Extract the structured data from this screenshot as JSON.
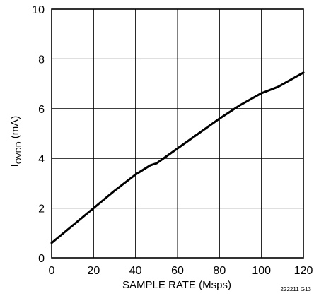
{
  "chart_data": {
    "type": "line",
    "title": "",
    "xlabel": "SAMPLE RATE (Msps)",
    "ylabel": {
      "main": "I",
      "subscript": "OVDD",
      "unit": " (mA)"
    },
    "xlim": [
      0,
      120
    ],
    "ylim": [
      0,
      10
    ],
    "xticks": [
      0,
      20,
      40,
      60,
      80,
      100,
      120
    ],
    "yticks": [
      0,
      2,
      4,
      6,
      8,
      10
    ],
    "grid": true,
    "legend": "none",
    "series": [
      {
        "color": "#000000",
        "x": [
          0,
          10,
          20,
          30,
          40,
          47,
          50,
          60,
          70,
          80,
          90,
          100,
          108,
          120
        ],
        "y": [
          0.6,
          1.3,
          2.0,
          2.7,
          3.35,
          3.72,
          3.8,
          4.4,
          5.0,
          5.6,
          6.15,
          6.62,
          6.88,
          7.45
        ]
      }
    ],
    "figure_id": "222211 G13"
  }
}
